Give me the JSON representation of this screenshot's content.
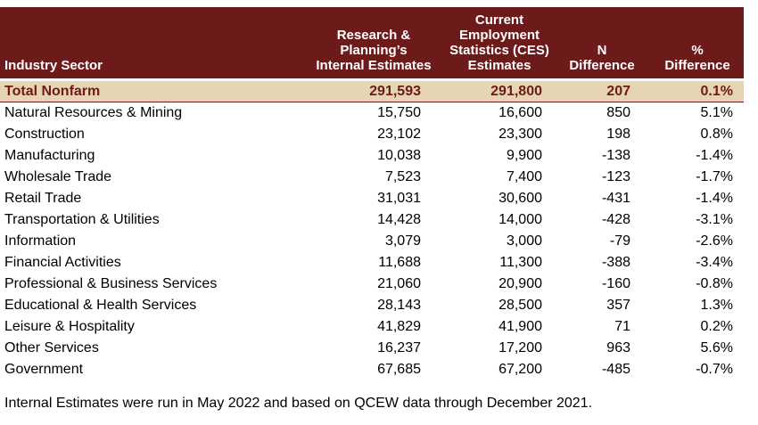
{
  "table": {
    "headers": {
      "sector": "Industry Sector",
      "rp": [
        "Research &",
        "Planning’s",
        "Internal Estimates"
      ],
      "ces": [
        "Current",
        "Employment",
        "Statistics (CES)",
        "Estimates"
      ],
      "n": [
        "N",
        "Difference"
      ],
      "pct": [
        "%",
        "Difference"
      ]
    },
    "total": {
      "sector": "Total Nonfarm",
      "rp": "291,593",
      "ces": "291,800",
      "n": "207",
      "pct": "0.1%"
    },
    "rows": [
      {
        "sector": "Natural Resources & Mining",
        "rp": "15,750",
        "ces": "16,600",
        "n": "850",
        "pct": "5.1%"
      },
      {
        "sector": "Construction",
        "rp": "23,102",
        "ces": "23,300",
        "n": "198",
        "pct": "0.8%"
      },
      {
        "sector": "Manufacturing",
        "rp": "10,038",
        "ces": "9,900",
        "n": "-138",
        "pct": "-1.4%"
      },
      {
        "sector": "Wholesale Trade",
        "rp": "7,523",
        "ces": "7,400",
        "n": "-123",
        "pct": "-1.7%"
      },
      {
        "sector": "Retail Trade",
        "rp": "31,031",
        "ces": "30,600",
        "n": "-431",
        "pct": "-1.4%"
      },
      {
        "sector": "Transportation & Utilities",
        "rp": "14,428",
        "ces": "14,000",
        "n": "-428",
        "pct": "-3.1%"
      },
      {
        "sector": "Information",
        "rp": "3,079",
        "ces": "3,000",
        "n": "-79",
        "pct": "-2.6%"
      },
      {
        "sector": "Financial Activities",
        "rp": "11,688",
        "ces": "11,300",
        "n": "-388",
        "pct": "-3.4%"
      },
      {
        "sector": "Professional & Business Services",
        "rp": "21,060",
        "ces": "20,900",
        "n": "-160",
        "pct": "-0.8%"
      },
      {
        "sector": "Educational & Health Services",
        "rp": "28,143",
        "ces": "28,500",
        "n": "357",
        "pct": "1.3%"
      },
      {
        "sector": "Leisure & Hospitality",
        "rp": "41,829",
        "ces": "41,900",
        "n": "71",
        "pct": "0.2%"
      },
      {
        "sector": "Other Services",
        "rp": "16,237",
        "ces": "17,200",
        "n": "963",
        "pct": "5.6%"
      },
      {
        "sector": "Government",
        "rp": "67,685",
        "ces": "67,200",
        "n": "-485",
        "pct": "-0.7%"
      }
    ]
  },
  "footnote": "Internal Estimates were run in May 2022 and based on QCEW data through December 2021.",
  "colors": {
    "header_bg": "#6d1a1a",
    "total_bg": "#e6d5b3",
    "total_text": "#6d1a1a"
  }
}
